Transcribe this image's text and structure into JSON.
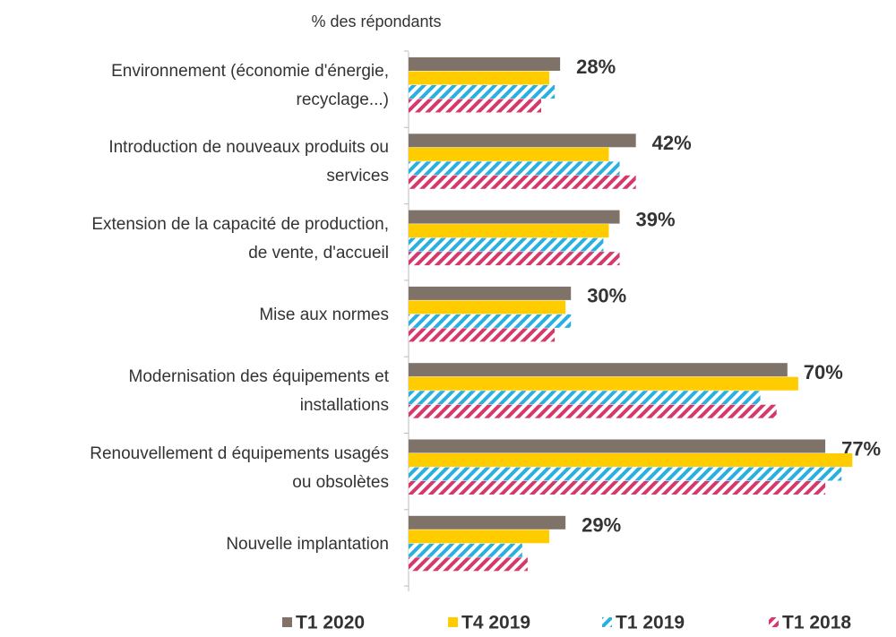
{
  "chart_data": {
    "type": "bar",
    "orientation": "horizontal",
    "subtitle": "% des répondants",
    "categories": [
      "Environnement (économie d'énergie,\nrecyclage...)",
      "Introduction de nouveaux produits ou\nservices",
      "Extension de la capacité de production,\nde vente, d'accueil",
      "Mise aux normes",
      "Modernisation des équipements et\ninstallations",
      "Renouvellement d équipements usagés\nou obsolètes",
      "Nouvelle implantation"
    ],
    "series": [
      {
        "name": "T1 2020",
        "color": "#7f7369",
        "hatch": false,
        "values": [
          28,
          42,
          39,
          30,
          70,
          77,
          29
        ],
        "value_labels": [
          "28%",
          "42%",
          "39%",
          "30%",
          "70%",
          "77%",
          "29%"
        ]
      },
      {
        "name": "T4 2019",
        "color": "#ffcc00",
        "hatch": false,
        "values": [
          26,
          37,
          37,
          29,
          72,
          82,
          26
        ]
      },
      {
        "name": "T1 2019",
        "color": "#2ab0e0",
        "hatch": true,
        "values": [
          27,
          39,
          36,
          30,
          65,
          80,
          21
        ]
      },
      {
        "name": "T1 2018",
        "color": "#d6386a",
        "hatch": true,
        "values": [
          24.5,
          42,
          39,
          27,
          68,
          77,
          22
        ]
      }
    ],
    "legend": "bottom"
  }
}
